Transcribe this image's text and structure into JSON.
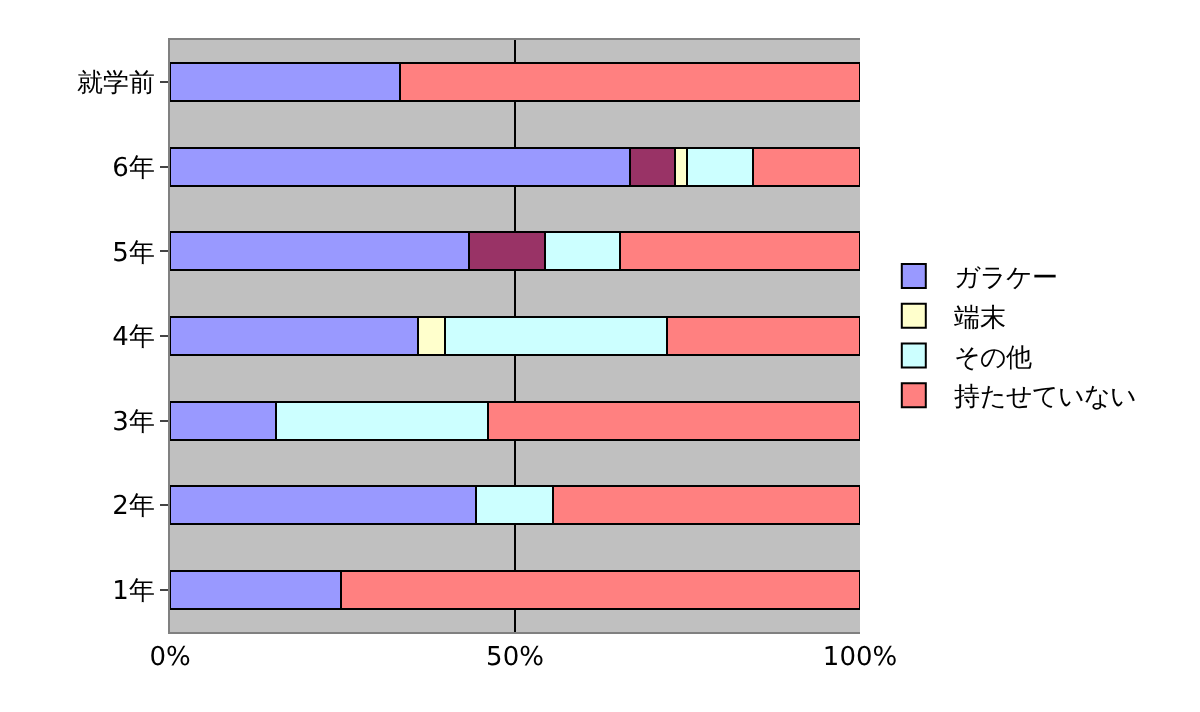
{
  "chart_data": {
    "type": "bar",
    "orientation": "horizontal",
    "stacked": true,
    "categories": [
      "就学前",
      "6年",
      "5年",
      "4年",
      "3年",
      "2年",
      "1年"
    ],
    "series": [
      {
        "name": "ガラケー",
        "color": "#9999ff",
        "values": [
          33.3,
          66.7,
          43.4,
          35.9,
          15.3,
          44.4,
          24.8
        ]
      },
      {
        "color": "#993366",
        "values": [
          null,
          6.5,
          10.9,
          null,
          null,
          null,
          null
        ]
      },
      {
        "name": "端末",
        "color": "#ffffcc",
        "values": [
          null,
          1.7,
          null,
          4,
          null,
          null,
          null
        ]
      },
      {
        "name": "その他",
        "color": "#ccffff",
        "values": [
          null,
          9.6,
          10.9,
          32.1,
          30.8,
          11.1,
          null
        ]
      },
      {
        "name": "持たせていない",
        "color": "#ff8080",
        "values": [
          66.7,
          15.5,
          34.8,
          28,
          53.9,
          44.5,
          75.2
        ]
      }
    ],
    "xlim": [
      0,
      100
    ],
    "xticks": [
      {
        "value": 0,
        "label": "0%"
      },
      {
        "value": 50,
        "label": "50%"
      },
      {
        "value": 100,
        "label": "100%"
      }
    ],
    "grid": "x",
    "legend": "right"
  }
}
